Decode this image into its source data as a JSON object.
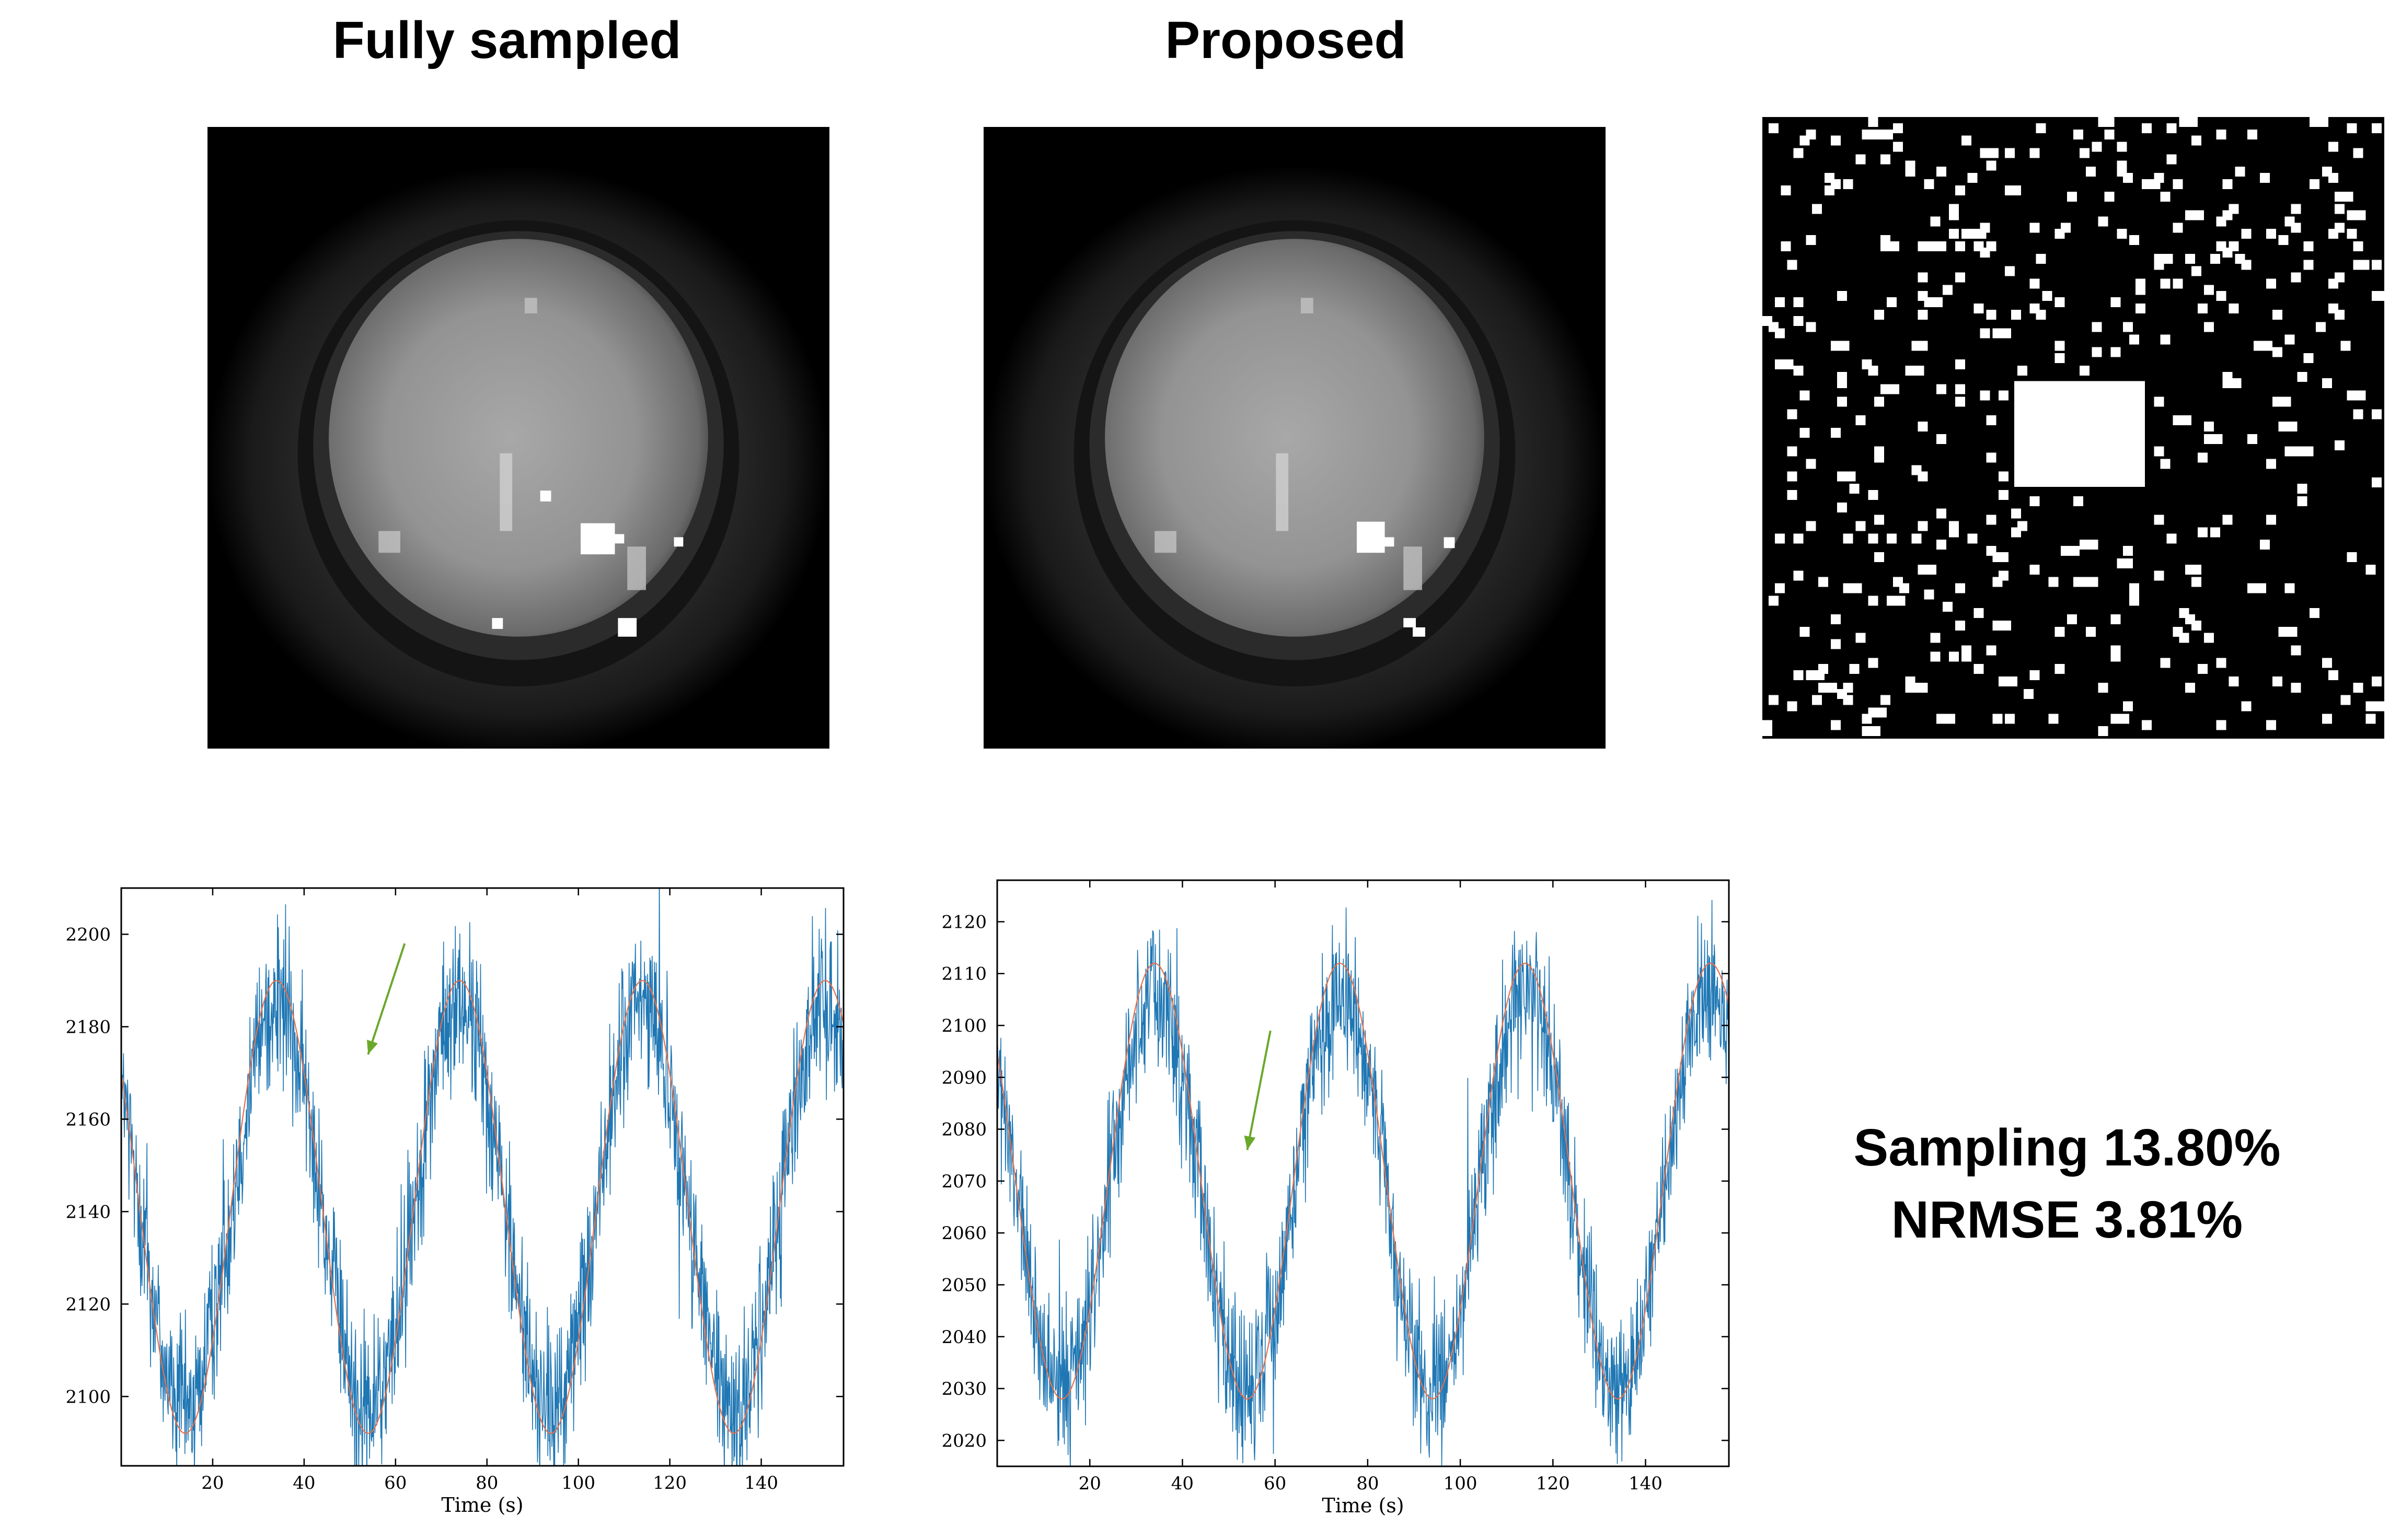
{
  "panels": {
    "fully_sampled_title": "Fully sampled",
    "proposed_title": "Proposed"
  },
  "stats": {
    "sampling": "Sampling 13.80%",
    "nrmse": "NRMSE 3.81%"
  },
  "colors": {
    "signal": "#1f77b4",
    "fit": "#e8704a",
    "arrow": "#6aa82a"
  },
  "chart_data": [
    {
      "type": "line",
      "name": "fully-sampled-timecourse",
      "title": "",
      "xlabel": "Time (s)",
      "ylabel": "",
      "xlim": [
        0,
        158
      ],
      "ylim": [
        2085,
        2210
      ],
      "xticks": [
        20,
        40,
        60,
        80,
        100,
        120,
        140
      ],
      "yticks": [
        2100,
        2120,
        2140,
        2160,
        2180,
        2200
      ],
      "series": [
        {
          "name": "measured signal",
          "color": "#1f77b4",
          "mean": 2141,
          "amplitude": 44,
          "period": 40,
          "phase_peak": 34,
          "noise": 11
        },
        {
          "name": "reference sinusoid",
          "color": "#e8704a",
          "mean": 2141,
          "amplitude": 49,
          "period": 40,
          "phase_peak": 34
        }
      ],
      "annotation": {
        "type": "arrow",
        "from": [
          62,
          2198
        ],
        "to": [
          54,
          2174
        ]
      }
    },
    {
      "type": "line",
      "name": "proposed-timecourse",
      "title": "",
      "xlabel": "Time (s)",
      "ylabel": "",
      "xlim": [
        0,
        158
      ],
      "ylim": [
        2015,
        2128
      ],
      "xticks": [
        20,
        40,
        60,
        80,
        100,
        120,
        140
      ],
      "yticks": [
        2020,
        2030,
        2040,
        2050,
        2060,
        2070,
        2080,
        2090,
        2100,
        2110,
        2120
      ],
      "series": [
        {
          "name": "measured signal",
          "color": "#1f77b4",
          "mean": 2068,
          "amplitude": 38,
          "period": 40,
          "phase_peak": 34,
          "noise": 9
        },
        {
          "name": "reference sinusoid",
          "color": "#e8704a",
          "mean": 2070,
          "amplitude": 42,
          "period": 40,
          "phase_peak": 34
        }
      ],
      "annotation": {
        "type": "arrow",
        "from": [
          59,
          2099
        ],
        "to": [
          54,
          2076
        ]
      }
    }
  ]
}
